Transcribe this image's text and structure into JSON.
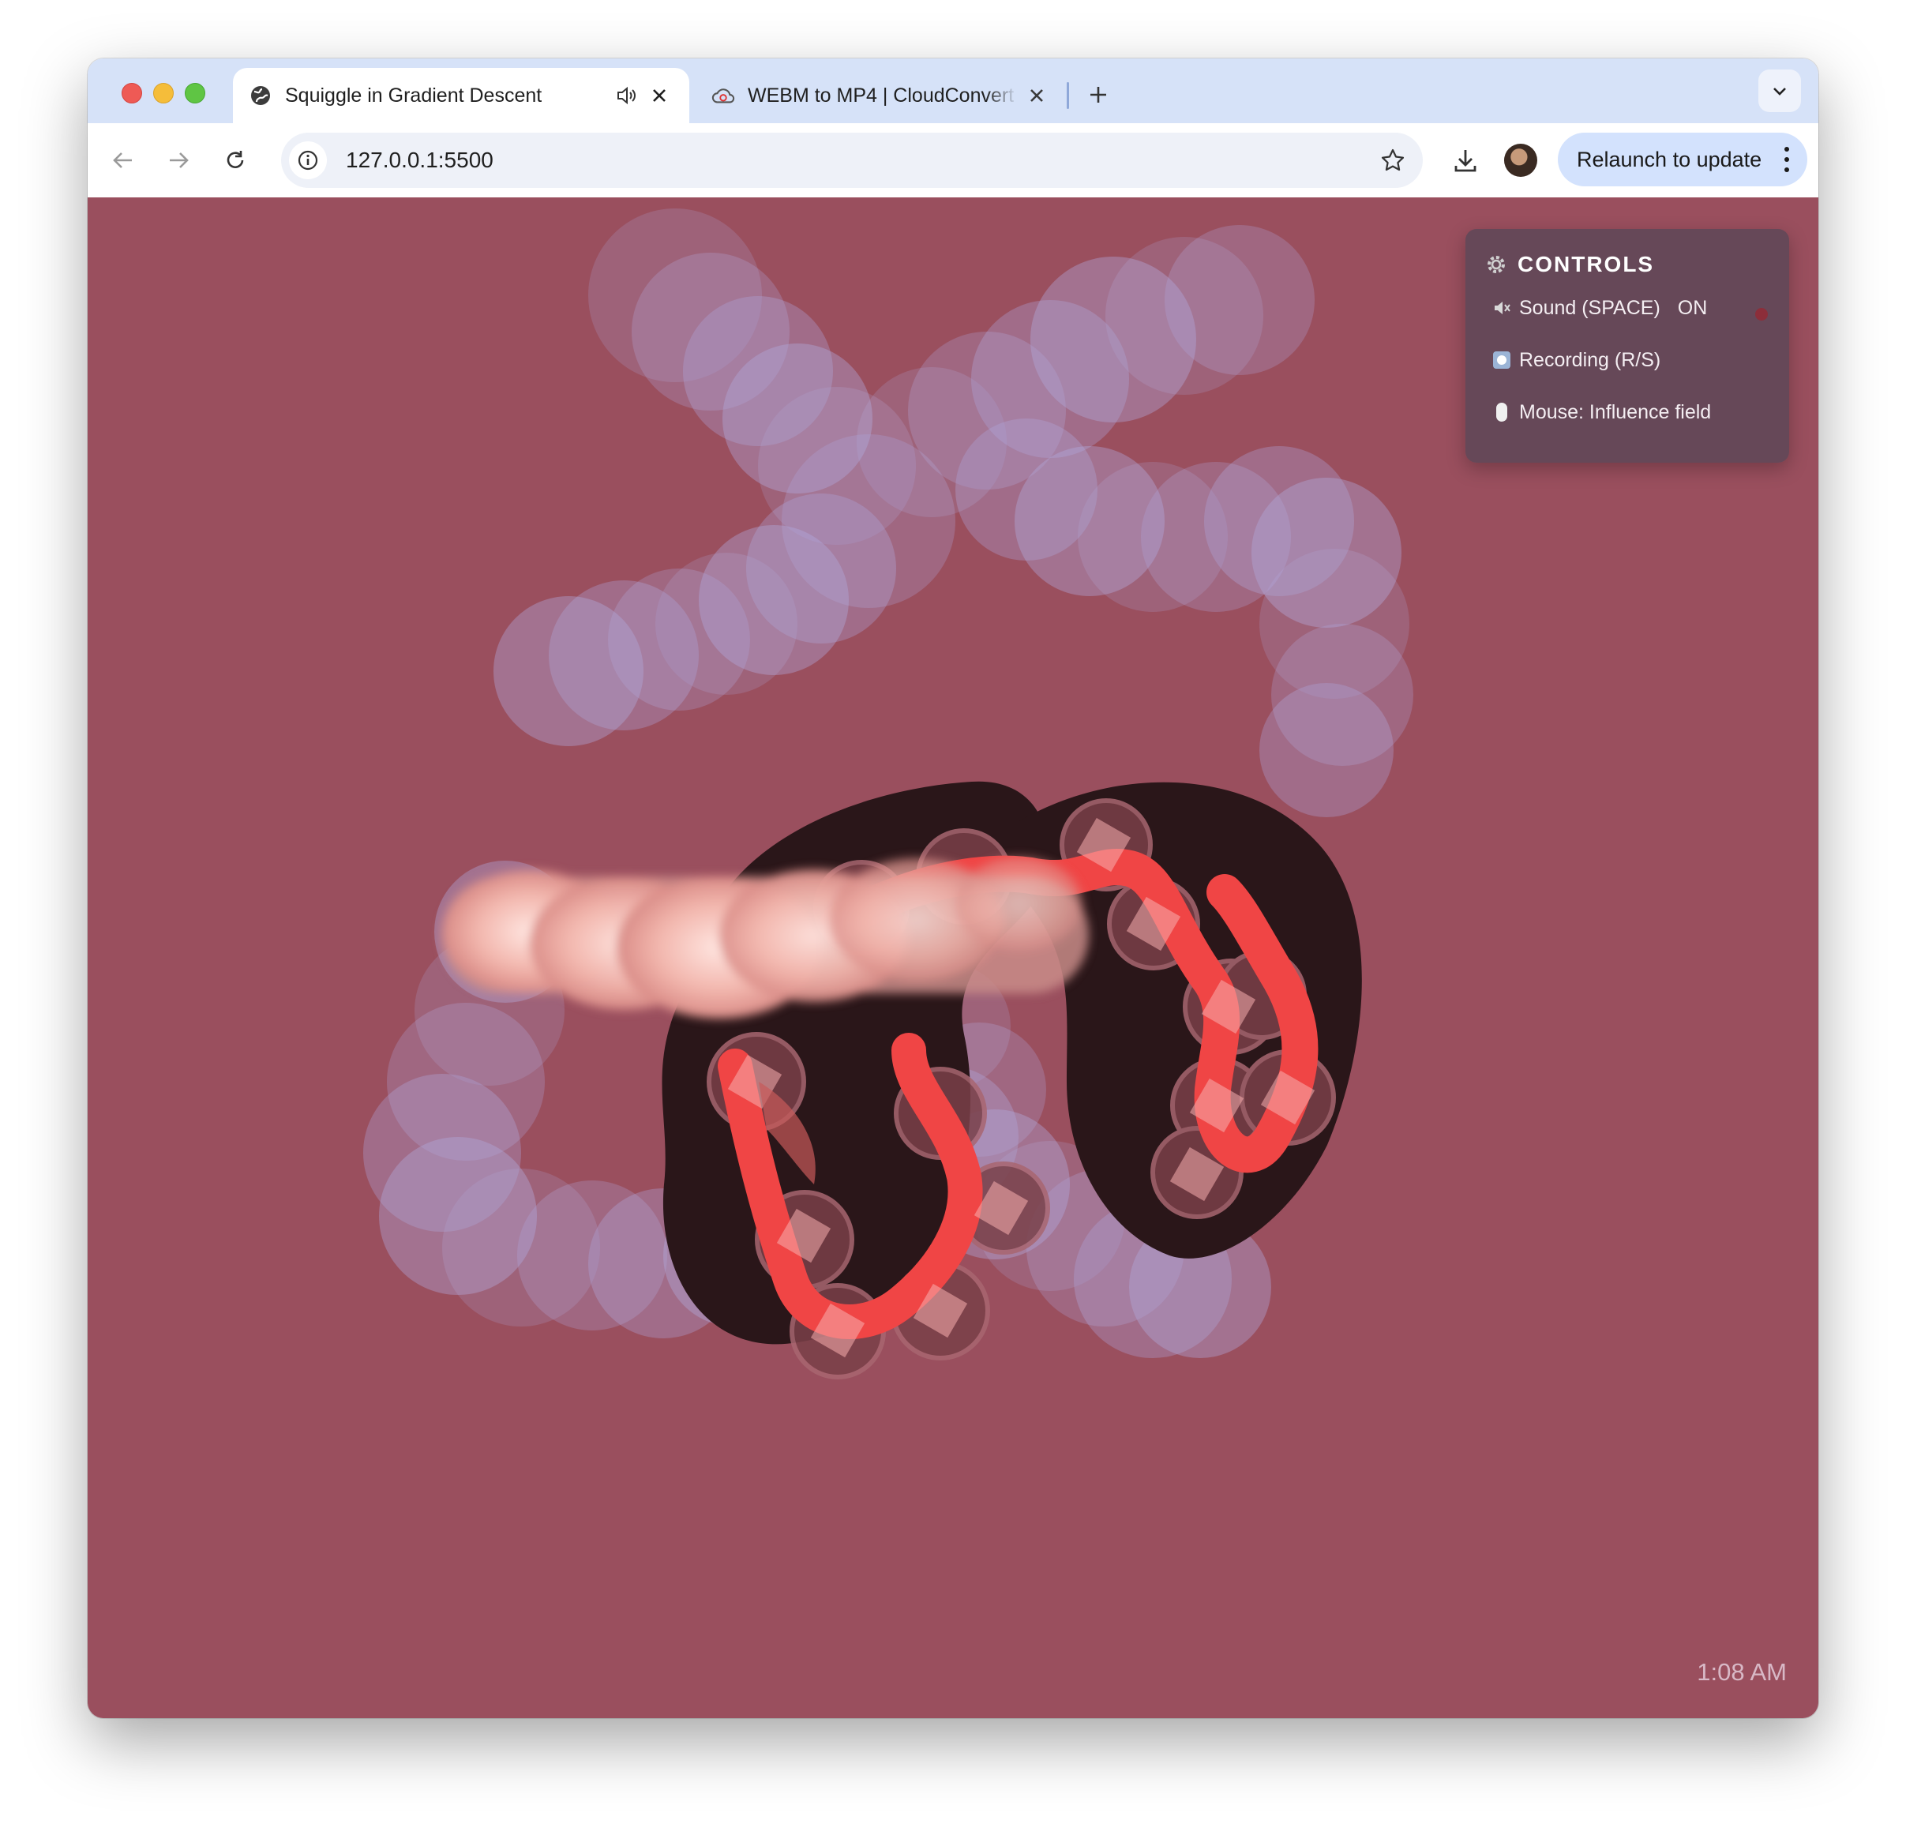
{
  "browser": {
    "tabs": [
      {
        "title": "Squiggle in Gradient Descent",
        "active": true,
        "audio": true,
        "favicon": "globe-icon"
      },
      {
        "title": "WEBM to MP4 | CloudConvert",
        "active": false,
        "favicon": "cloudconvert-icon"
      }
    ],
    "address": "127.0.0.1:5500",
    "relaunch_label": "Relaunch to update"
  },
  "controls": {
    "title": "CONTROLS",
    "sound_label": "Sound (SPACE)",
    "sound_state": "ON",
    "recording_label": "Recording (R/S)",
    "mouse_label": "Mouse: Influence field"
  },
  "clock": "1:08 AM",
  "colors": {
    "page_background": "#9a4f5e",
    "panel_background": "#5e4858",
    "squiggle_red": "#f04545",
    "blob_lavender": "#b4b4ec",
    "body_dark": "#2a1619",
    "sound_indicator": "#8c2e3a"
  }
}
